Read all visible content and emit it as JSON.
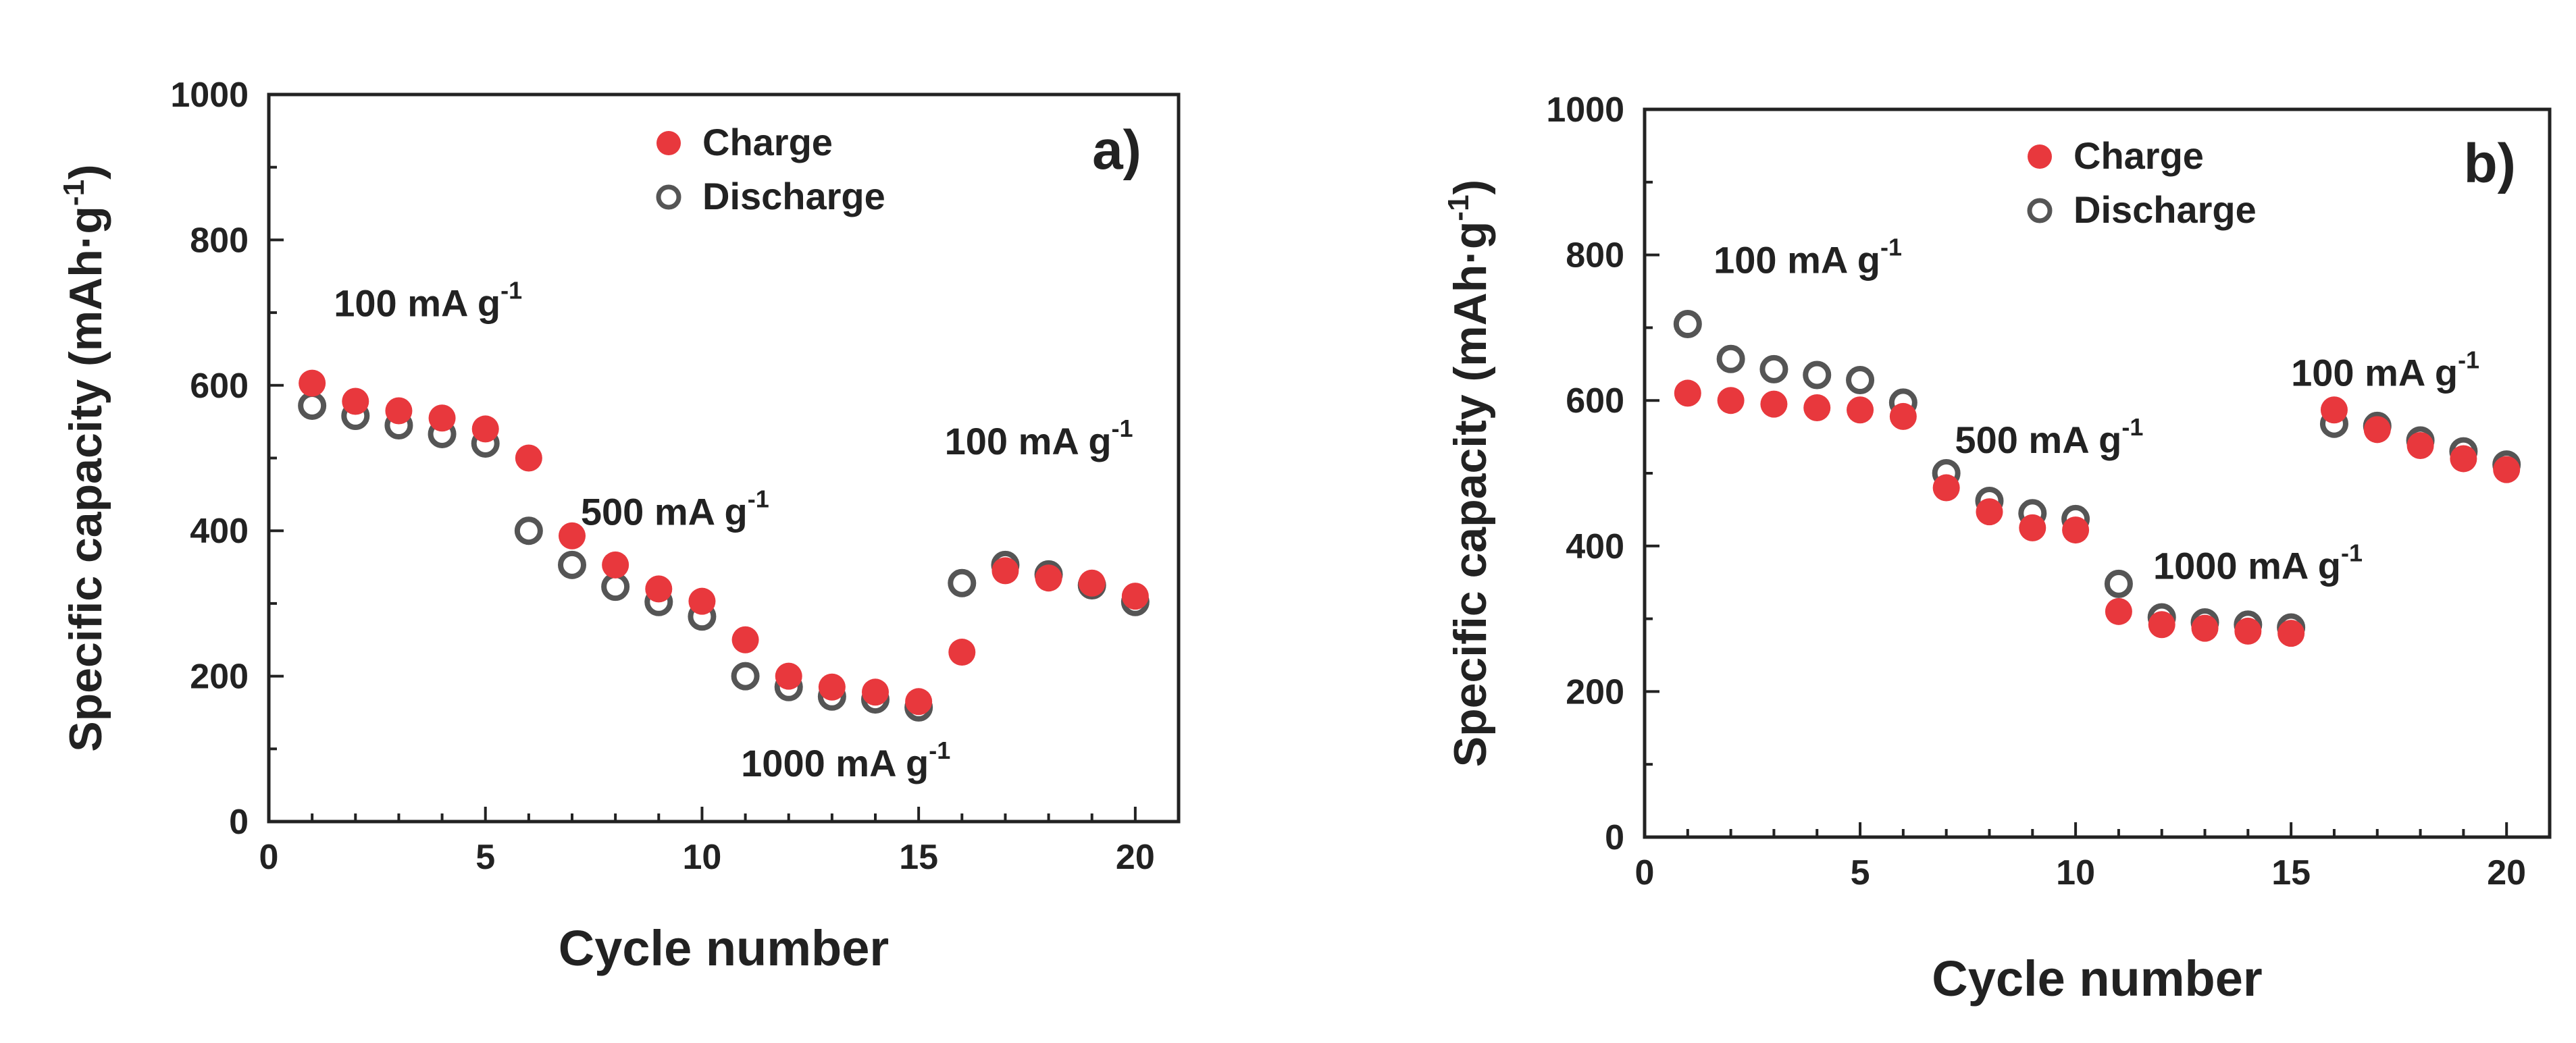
{
  "colors": {
    "charge": "#e8383d",
    "discharge": "#555555",
    "axis": "#222222"
  },
  "chart_data": [
    {
      "type": "scatter",
      "panel_label": "a)",
      "xlabel": "Cycle number",
      "ylabel": "Specific capacity (mAh·g",
      "ylabel_sup": "-1",
      "ylabel_close": ")",
      "xlim": [
        0,
        21
      ],
      "ylim": [
        0,
        1000
      ],
      "xticks": [
        0,
        5,
        10,
        15,
        20
      ],
      "yticks": [
        0,
        200,
        400,
        600,
        800,
        1000
      ],
      "legend": [
        "Charge",
        "Discharge"
      ],
      "legend_position": "top-center",
      "x": [
        1,
        2,
        3,
        4,
        5,
        6,
        7,
        8,
        9,
        10,
        11,
        12,
        13,
        14,
        15,
        16,
        17,
        18,
        19,
        20
      ],
      "series": [
        {
          "name": "Charge",
          "marker": "filled-circle",
          "values": [
            603,
            578,
            565,
            555,
            540,
            500,
            393,
            353,
            320,
            303,
            250,
            200,
            185,
            178,
            165,
            233,
            345,
            335,
            328,
            310
          ]
        },
        {
          "name": "Discharge",
          "marker": "open-circle",
          "values": [
            572,
            558,
            545,
            533,
            520,
            400,
            353,
            323,
            302,
            282,
            200,
            185,
            172,
            168,
            157,
            328,
            353,
            340,
            325,
            302
          ]
        }
      ],
      "annotations": [
        {
          "text": "100 mA g",
          "sup": "-1",
          "anchor_x": 1.5,
          "anchor_y": 695
        },
        {
          "text": "500 mA g",
          "sup": "-1",
          "anchor_x": 7.2,
          "anchor_y": 408
        },
        {
          "text": "1000 mA g",
          "sup": "-1",
          "anchor_x": 10.9,
          "anchor_y": 62
        },
        {
          "text": "100 mA g",
          "sup": "-1",
          "anchor_x": 15.6,
          "anchor_y": 505
        }
      ]
    },
    {
      "type": "scatter",
      "panel_label": "b)",
      "xlabel": "Cycle number",
      "ylabel": "Specific capacity (mAh·g",
      "ylabel_sup": "-1",
      "ylabel_close": ")",
      "xlim": [
        0,
        21
      ],
      "ylim": [
        0,
        1000
      ],
      "xticks": [
        0,
        5,
        10,
        15,
        20
      ],
      "yticks": [
        0,
        200,
        400,
        600,
        800,
        1000
      ],
      "legend": [
        "Charge",
        "Discharge"
      ],
      "legend_position": "top-center",
      "x": [
        1,
        2,
        3,
        4,
        5,
        6,
        7,
        8,
        9,
        10,
        11,
        12,
        13,
        14,
        15,
        16,
        17,
        18,
        19,
        20
      ],
      "series": [
        {
          "name": "Charge",
          "marker": "filled-circle",
          "values": [
            610,
            600,
            595,
            590,
            587,
            578,
            480,
            447,
            425,
            422,
            310,
            292,
            287,
            283,
            280,
            587,
            560,
            538,
            520,
            505
          ]
        },
        {
          "name": "Discharge",
          "marker": "open-circle",
          "values": [
            705,
            657,
            643,
            635,
            628,
            597,
            500,
            462,
            445,
            437,
            348,
            302,
            295,
            292,
            288,
            568,
            565,
            545,
            530,
            512
          ]
        }
      ],
      "annotations": [
        {
          "text": "100 mA g",
          "sup": "-1",
          "anchor_x": 1.6,
          "anchor_y": 775
        },
        {
          "text": "500 mA g",
          "sup": "-1",
          "anchor_x": 7.2,
          "anchor_y": 528
        },
        {
          "text": "1000 mA g",
          "sup": "-1",
          "anchor_x": 11.8,
          "anchor_y": 355
        },
        {
          "text": "100 mA g",
          "sup": "-1",
          "anchor_x": 15.0,
          "anchor_y": 620
        }
      ]
    }
  ]
}
